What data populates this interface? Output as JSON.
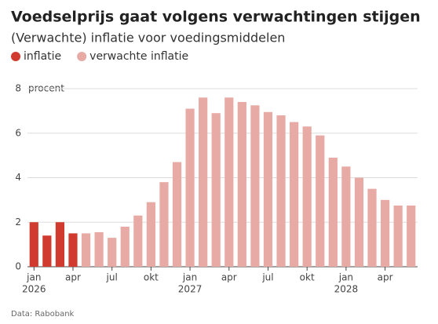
{
  "chart_data": {
    "type": "bar",
    "title": "Voedselprijs gaat volgens verwachtingen stijgen",
    "subtitle": "(Verwachte) inflatie voor voedingsmiddelen",
    "y_label": "procent",
    "source": "Data: Rabobank",
    "categories": [
      "jan",
      null,
      null,
      "apr",
      null,
      null,
      "jul",
      null,
      null,
      "okt",
      null,
      null,
      "jan",
      null,
      null,
      "apr",
      null,
      null,
      "jul",
      null,
      null,
      "okt",
      null,
      null,
      "jan",
      null,
      null,
      "apr",
      null,
      null
    ],
    "years": [
      "2026",
      null,
      null,
      null,
      null,
      null,
      null,
      null,
      null,
      null,
      null,
      null,
      "2027",
      null,
      null,
      null,
      null,
      null,
      null,
      null,
      null,
      null,
      null,
      null,
      "2028",
      null,
      null,
      null,
      null,
      null
    ],
    "series": [
      {
        "name": "inflatie",
        "color": "#d13a2e",
        "values": [
          2.0,
          1.4,
          2.0,
          1.5,
          null,
          null,
          null,
          null,
          null,
          null,
          null,
          null,
          null,
          null,
          null,
          null,
          null,
          null,
          null,
          null,
          null,
          null,
          null,
          null,
          null,
          null,
          null,
          null,
          null,
          null
        ]
      },
      {
        "name": "verwachte inflatie",
        "color": "#e8aaa5",
        "values": [
          null,
          null,
          null,
          null,
          1.5,
          1.55,
          1.3,
          1.8,
          2.3,
          2.9,
          3.8,
          4.7,
          7.1,
          7.6,
          6.9,
          7.6,
          7.4,
          7.25,
          6.95,
          6.8,
          6.5,
          6.3,
          5.9,
          4.9,
          4.5,
          4.0,
          3.5,
          3.0,
          2.75,
          2.75
        ]
      }
    ],
    "ylim": [
      0,
      8
    ],
    "yticks": [
      0,
      2,
      4,
      6,
      8
    ],
    "grid": true
  }
}
